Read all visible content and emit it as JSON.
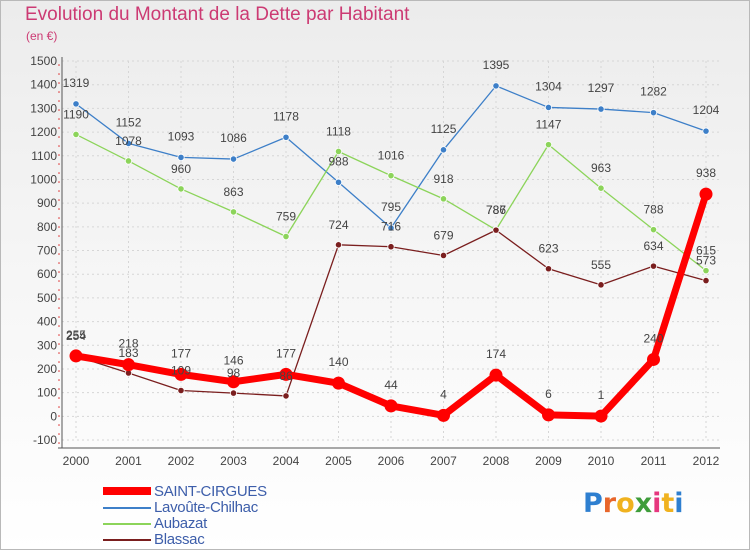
{
  "title": "Evolution du Montant de la Dette par Habitant",
  "subtitle": "(en €)",
  "logo": {
    "text": "Proxiti",
    "colors": [
      "#2e7fd0",
      "#e8662b",
      "#f0b21f",
      "#3e9d3a",
      "#e6377e",
      "#f0b21f",
      "#2e7fd0"
    ]
  },
  "chart_data": {
    "type": "line",
    "title": "Evolution du Montant de la Dette par Habitant",
    "subtitle": "(en €)",
    "categories": [
      "2000",
      "2001",
      "2002",
      "2003",
      "2004",
      "2005",
      "2006",
      "2007",
      "2008",
      "2009",
      "2010",
      "2011",
      "2012"
    ],
    "yticks": [
      "-100",
      "0",
      "100",
      "200",
      "300",
      "400",
      "500",
      "600",
      "700",
      "800",
      "900",
      "1000",
      "1100",
      "1200",
      "1300",
      "1400",
      "1500"
    ],
    "ylim": [
      -100,
      1500
    ],
    "grid": true,
    "legend_position": "bottom-left",
    "series": [
      {
        "name": "SAINT-CIRGUES",
        "color": "#ff0000",
        "values": [
          255,
          218,
          177,
          146,
          177,
          140,
          44,
          4,
          174,
          6,
          1,
          240,
          938
        ]
      },
      {
        "name": "Lavoûte-Chilhac",
        "color": "#3d7fc8",
        "values": [
          1319,
          1152,
          1093,
          1086,
          1178,
          988,
          795,
          1125,
          1395,
          1304,
          1297,
          1282,
          1204
        ]
      },
      {
        "name": "Aubazat",
        "color": "#8cd45a",
        "values": [
          1190,
          1078,
          960,
          863,
          759,
          1118,
          1016,
          918,
          787,
          1147,
          963,
          788,
          615
        ]
      },
      {
        "name": "Blassac",
        "color": "#7a1e1e",
        "values": [
          254,
          183,
          109,
          98,
          86,
          724,
          716,
          679,
          786,
          623,
          555,
          634,
          573
        ]
      }
    ]
  }
}
